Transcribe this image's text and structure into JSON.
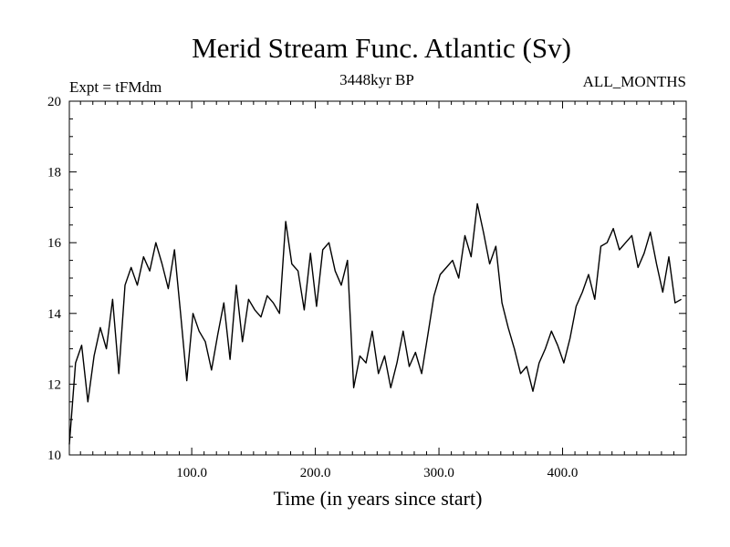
{
  "chart_data": {
    "type": "line",
    "title": "Merid Stream Func. Atlantic (Sv)",
    "annotations": {
      "left": "Expt = tFMdm",
      "center": "3448kyr BP",
      "right": "ALL_MONTHS"
    },
    "xlabel": "Time (in years since start)",
    "ylabel": "",
    "xlim": [
      1,
      500
    ],
    "ylim": [
      10,
      20
    ],
    "x_ticks": [
      100,
      200,
      300,
      400
    ],
    "x_tick_labels": [
      "100.0",
      "200.0",
      "300.0",
      "400.0"
    ],
    "y_ticks": [
      10,
      12,
      14,
      16,
      18,
      20
    ],
    "y_tick_labels": [
      "10",
      "12",
      "14",
      "16",
      "18",
      "20"
    ],
    "grid": false,
    "line_color": "#000000",
    "series": [
      {
        "name": "Merid Stream Func. Atlantic",
        "x_start": 1,
        "x_step": 5,
        "values": [
          10.3,
          12.6,
          13.1,
          11.5,
          12.8,
          13.6,
          13.0,
          14.4,
          12.3,
          14.8,
          15.3,
          14.8,
          15.6,
          15.2,
          16.0,
          15.4,
          14.7,
          15.8,
          14.0,
          12.1,
          14.0,
          13.5,
          13.2,
          12.4,
          13.4,
          14.3,
          12.7,
          14.8,
          13.2,
          14.4,
          14.1,
          13.9,
          14.5,
          14.3,
          14.0,
          16.6,
          15.4,
          15.2,
          14.1,
          15.7,
          14.2,
          15.8,
          16.0,
          15.2,
          14.8,
          15.5,
          11.9,
          12.8,
          12.6,
          13.5,
          12.3,
          12.8,
          11.9,
          12.6,
          13.5,
          12.5,
          12.9,
          12.3,
          13.4,
          14.5,
          15.1,
          15.3,
          15.5,
          15.0,
          16.2,
          15.6,
          17.1,
          16.3,
          15.4,
          15.9,
          14.3,
          13.6,
          13.0,
          12.3,
          12.5,
          11.8,
          12.6,
          13.0,
          13.5,
          13.1,
          12.6,
          13.3,
          14.2,
          14.6,
          15.1,
          14.4,
          15.9,
          16.0,
          16.4,
          15.8,
          16.0,
          16.2,
          15.3,
          15.7,
          16.3,
          15.4,
          14.6,
          15.6,
          14.3,
          14.4
        ]
      }
    ]
  }
}
